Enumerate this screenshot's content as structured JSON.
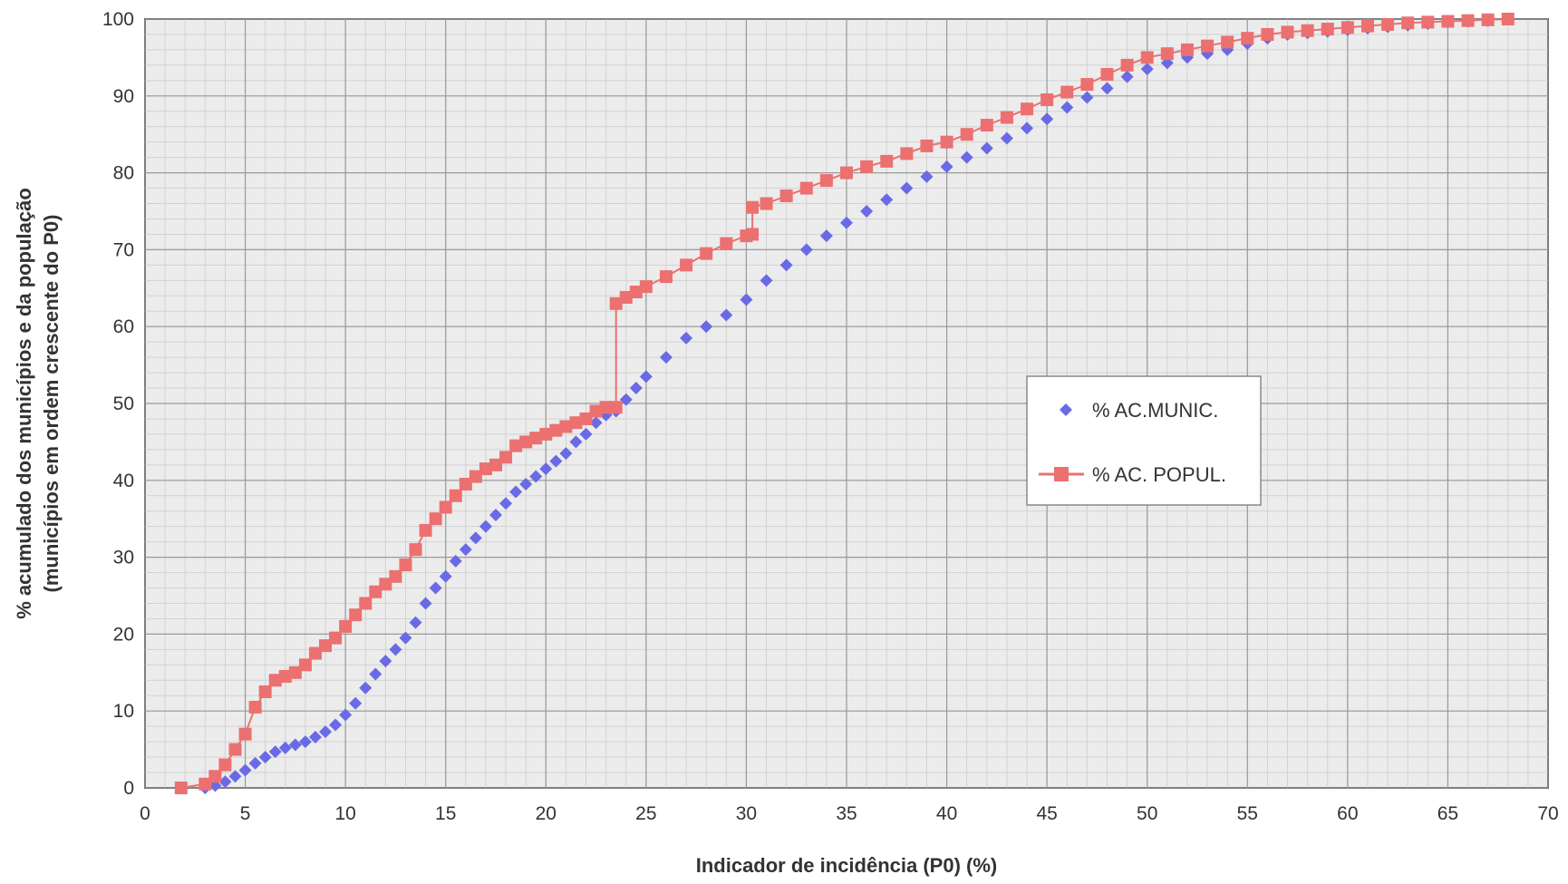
{
  "chart_data": {
    "type": "scatter",
    "title": "",
    "xlabel": "Indicador de incidência (P0)  (%)",
    "ylabel_line1": "% acumulado dos municípios e da população",
    "ylabel_line2": "(municípios em ordem crescente do P0)",
    "xlim": [
      0,
      70
    ],
    "ylim": [
      0,
      100
    ],
    "x_ticks": [
      "0",
      "5",
      "10",
      "15",
      "20",
      "25",
      "30",
      "35",
      "40",
      "45",
      "50",
      "55",
      "60",
      "65",
      "70"
    ],
    "y_ticks": [
      "0",
      "10",
      "20",
      "30",
      "40",
      "50",
      "60",
      "70",
      "80",
      "90",
      "100"
    ],
    "grid": true,
    "legend_position": "right",
    "series": [
      {
        "name": "% AC.MUNIC.",
        "color": "#6a6ae6",
        "marker": "diamond",
        "points": [
          [
            3.0,
            0.0
          ],
          [
            3.5,
            0.3
          ],
          [
            4.0,
            0.8
          ],
          [
            4.5,
            1.5
          ],
          [
            5.0,
            2.3
          ],
          [
            5.5,
            3.2
          ],
          [
            6.0,
            4.0
          ],
          [
            6.5,
            4.7
          ],
          [
            7.0,
            5.2
          ],
          [
            7.5,
            5.6
          ],
          [
            8.0,
            6.0
          ],
          [
            8.5,
            6.6
          ],
          [
            9.0,
            7.3
          ],
          [
            9.5,
            8.2
          ],
          [
            10.0,
            9.5
          ],
          [
            10.5,
            11.0
          ],
          [
            11.0,
            13.0
          ],
          [
            11.5,
            14.8
          ],
          [
            12.0,
            16.5
          ],
          [
            12.5,
            18.0
          ],
          [
            13.0,
            19.5
          ],
          [
            13.5,
            21.5
          ],
          [
            14.0,
            24.0
          ],
          [
            14.5,
            26.0
          ],
          [
            15.0,
            27.5
          ],
          [
            15.5,
            29.5
          ],
          [
            16.0,
            31.0
          ],
          [
            16.5,
            32.5
          ],
          [
            17.0,
            34.0
          ],
          [
            17.5,
            35.5
          ],
          [
            18.0,
            37.0
          ],
          [
            18.5,
            38.5
          ],
          [
            19.0,
            39.5
          ],
          [
            19.5,
            40.5
          ],
          [
            20.0,
            41.5
          ],
          [
            20.5,
            42.5
          ],
          [
            21.0,
            43.5
          ],
          [
            21.5,
            45.0
          ],
          [
            22.0,
            46.0
          ],
          [
            22.5,
            47.5
          ],
          [
            23.0,
            48.5
          ],
          [
            23.5,
            49.0
          ],
          [
            24.0,
            50.5
          ],
          [
            24.5,
            52.0
          ],
          [
            25.0,
            53.5
          ],
          [
            26.0,
            56.0
          ],
          [
            27.0,
            58.5
          ],
          [
            28.0,
            60.0
          ],
          [
            29.0,
            61.5
          ],
          [
            30.0,
            63.5
          ],
          [
            31.0,
            66.0
          ],
          [
            32.0,
            68.0
          ],
          [
            33.0,
            70.0
          ],
          [
            34.0,
            71.8
          ],
          [
            35.0,
            73.5
          ],
          [
            36.0,
            75.0
          ],
          [
            37.0,
            76.5
          ],
          [
            38.0,
            78.0
          ],
          [
            39.0,
            79.5
          ],
          [
            40.0,
            80.8
          ],
          [
            41.0,
            82.0
          ],
          [
            42.0,
            83.2
          ],
          [
            43.0,
            84.5
          ],
          [
            44.0,
            85.8
          ],
          [
            45.0,
            87.0
          ],
          [
            46.0,
            88.5
          ],
          [
            47.0,
            89.8
          ],
          [
            48.0,
            91.0
          ],
          [
            49.0,
            92.5
          ],
          [
            50.0,
            93.5
          ],
          [
            51.0,
            94.3
          ],
          [
            52.0,
            95.0
          ],
          [
            53.0,
            95.5
          ],
          [
            54.0,
            96.0
          ],
          [
            55.0,
            96.8
          ],
          [
            56.0,
            97.5
          ],
          [
            57.0,
            98.0
          ],
          [
            58.0,
            98.2
          ],
          [
            59.0,
            98.4
          ],
          [
            60.0,
            98.6
          ],
          [
            61.0,
            98.8
          ],
          [
            62.0,
            99.0
          ],
          [
            63.0,
            99.2
          ],
          [
            64.0,
            99.4
          ],
          [
            65.0,
            99.6
          ],
          [
            66.0,
            99.7
          ],
          [
            67.0,
            99.8
          ],
          [
            68.0,
            100.0
          ]
        ]
      },
      {
        "name": "% AC. POPUL.",
        "color": "#ec7070",
        "marker": "square",
        "points": [
          [
            1.8,
            0.0
          ],
          [
            3.0,
            0.5
          ],
          [
            3.5,
            1.5
          ],
          [
            4.0,
            3.0
          ],
          [
            4.5,
            5.0
          ],
          [
            5.0,
            7.0
          ],
          [
            5.5,
            10.5
          ],
          [
            6.0,
            12.5
          ],
          [
            6.5,
            14.0
          ],
          [
            7.0,
            14.5
          ],
          [
            7.5,
            15.0
          ],
          [
            8.0,
            16.0
          ],
          [
            8.5,
            17.5
          ],
          [
            9.0,
            18.5
          ],
          [
            9.5,
            19.5
          ],
          [
            10.0,
            21.0
          ],
          [
            10.5,
            22.5
          ],
          [
            11.0,
            24.0
          ],
          [
            11.5,
            25.5
          ],
          [
            12.0,
            26.5
          ],
          [
            12.5,
            27.5
          ],
          [
            13.0,
            29.0
          ],
          [
            13.5,
            31.0
          ],
          [
            14.0,
            33.5
          ],
          [
            14.5,
            35.0
          ],
          [
            15.0,
            36.5
          ],
          [
            15.5,
            38.0
          ],
          [
            16.0,
            39.5
          ],
          [
            16.5,
            40.5
          ],
          [
            17.0,
            41.5
          ],
          [
            17.5,
            42.0
          ],
          [
            18.0,
            43.0
          ],
          [
            18.5,
            44.5
          ],
          [
            19.0,
            45.0
          ],
          [
            19.5,
            45.5
          ],
          [
            20.0,
            46.0
          ],
          [
            20.5,
            46.5
          ],
          [
            21.0,
            47.0
          ],
          [
            21.5,
            47.5
          ],
          [
            22.0,
            48.0
          ],
          [
            22.5,
            49.0
          ],
          [
            23.0,
            49.5
          ],
          [
            23.5,
            49.5
          ],
          [
            23.5,
            63.0
          ],
          [
            24.0,
            63.8
          ],
          [
            24.5,
            64.5
          ],
          [
            25.0,
            65.2
          ],
          [
            26.0,
            66.5
          ],
          [
            27.0,
            68.0
          ],
          [
            28.0,
            69.5
          ],
          [
            29.0,
            70.8
          ],
          [
            30.0,
            71.8
          ],
          [
            30.3,
            72.0
          ],
          [
            30.3,
            75.5
          ],
          [
            31.0,
            76.0
          ],
          [
            32.0,
            77.0
          ],
          [
            33.0,
            78.0
          ],
          [
            34.0,
            79.0
          ],
          [
            35.0,
            80.0
          ],
          [
            36.0,
            80.8
          ],
          [
            37.0,
            81.5
          ],
          [
            38.0,
            82.5
          ],
          [
            39.0,
            83.5
          ],
          [
            40.0,
            84.0
          ],
          [
            41.0,
            85.0
          ],
          [
            42.0,
            86.2
          ],
          [
            43.0,
            87.2
          ],
          [
            44.0,
            88.3
          ],
          [
            45.0,
            89.5
          ],
          [
            46.0,
            90.5
          ],
          [
            47.0,
            91.5
          ],
          [
            48.0,
            92.8
          ],
          [
            49.0,
            94.0
          ],
          [
            50.0,
            95.0
          ],
          [
            51.0,
            95.5
          ],
          [
            52.0,
            96.0
          ],
          [
            53.0,
            96.5
          ],
          [
            54.0,
            97.0
          ],
          [
            55.0,
            97.5
          ],
          [
            56.0,
            98.0
          ],
          [
            57.0,
            98.3
          ],
          [
            58.0,
            98.5
          ],
          [
            59.0,
            98.7
          ],
          [
            60.0,
            98.9
          ],
          [
            61.0,
            99.1
          ],
          [
            62.0,
            99.3
          ],
          [
            63.0,
            99.5
          ],
          [
            64.0,
            99.6
          ],
          [
            65.0,
            99.7
          ],
          [
            66.0,
            99.8
          ],
          [
            67.0,
            99.9
          ],
          [
            68.0,
            100.0
          ]
        ]
      }
    ]
  }
}
